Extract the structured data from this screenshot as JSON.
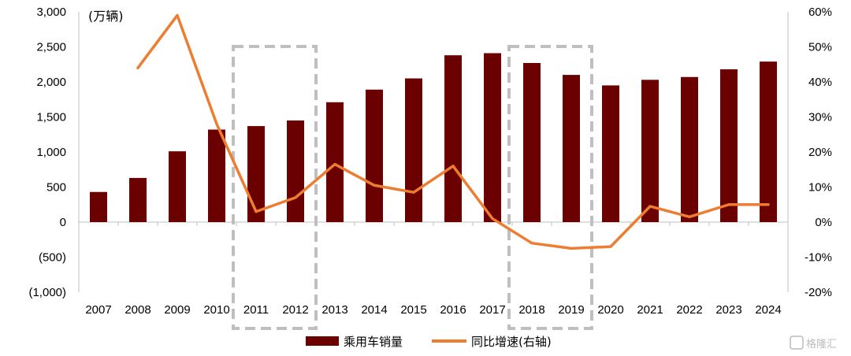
{
  "chart_data": {
    "type": "bar+line",
    "categories": [
      "2007",
      "2008",
      "2009",
      "2010",
      "2011",
      "2012",
      "2013",
      "2014",
      "2015",
      "2016",
      "2017",
      "2018",
      "2019",
      "2020",
      "2021",
      "2022",
      "2023",
      "2024"
    ],
    "series": [
      {
        "name": "乘用车销量",
        "type": "bar",
        "axis": "left",
        "color": "#6b0000",
        "values": [
          430,
          630,
          1010,
          1320,
          1370,
          1450,
          1710,
          1890,
          2050,
          2380,
          2410,
          2270,
          2100,
          1950,
          2030,
          2070,
          2180,
          2290
        ]
      },
      {
        "name": "同比增速(右轴)",
        "type": "line",
        "axis": "right",
        "color": "#ed7d31",
        "values": [
          null,
          44,
          59,
          28,
          3,
          7,
          16.5,
          10.5,
          8.5,
          16,
          1,
          -6,
          -7.5,
          -7,
          4.5,
          1.5,
          5,
          5
        ]
      }
    ],
    "y_left": {
      "min": -1000,
      "max": 3000,
      "step": 500,
      "tick_labels": [
        "(1,000)",
        "(500)",
        "0",
        "500",
        "1,000",
        "1,500",
        "2,000",
        "2,500",
        "3,000"
      ],
      "negative_color": "#ff0000",
      "unit_label": "(万辆)"
    },
    "y_right": {
      "min": -20,
      "max": 60,
      "step": 10,
      "tick_labels": [
        "-20%",
        "-10%",
        "0%",
        "10%",
        "20%",
        "30%",
        "40%",
        "50%",
        "60%"
      ]
    },
    "highlight_boxes": [
      {
        "from": "2011",
        "to": "2012"
      },
      {
        "from": "2018",
        "to": "2019"
      }
    ],
    "legend_position": "bottom",
    "watermark": "格隆汇"
  }
}
